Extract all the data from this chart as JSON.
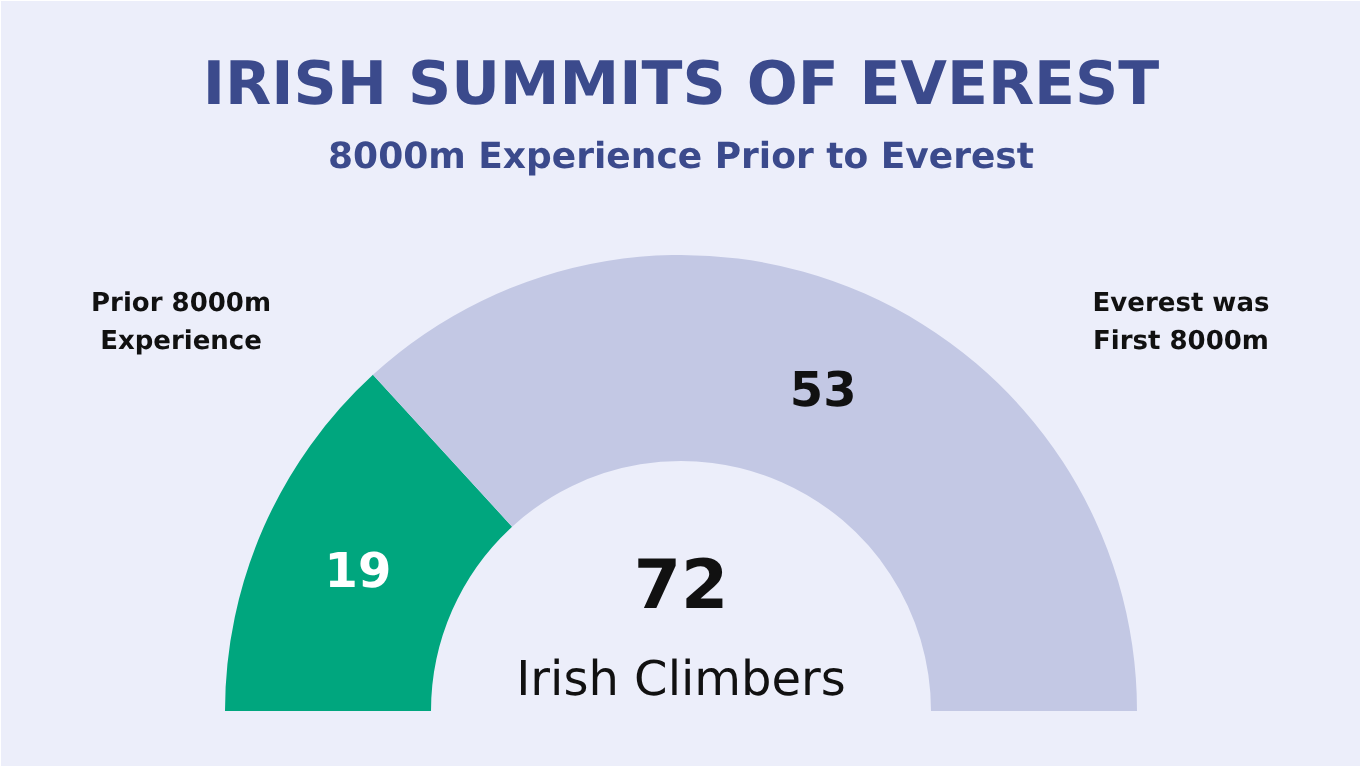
{
  "chart_data": {
    "type": "donut",
    "title": "IRISH SUMMITS OF EVEREST",
    "subtitle": "8000m Experience Prior to Everest",
    "categories": [
      "Prior 8000m\nExperience",
      "Everest was\nFirst 8000m"
    ],
    "values": [
      19,
      53
    ],
    "colors": [
      "#00a67e",
      "#c3c8e4"
    ],
    "data_labels": true,
    "annotations": [
      "72",
      "Irish Climbers"
    ]
  }
}
